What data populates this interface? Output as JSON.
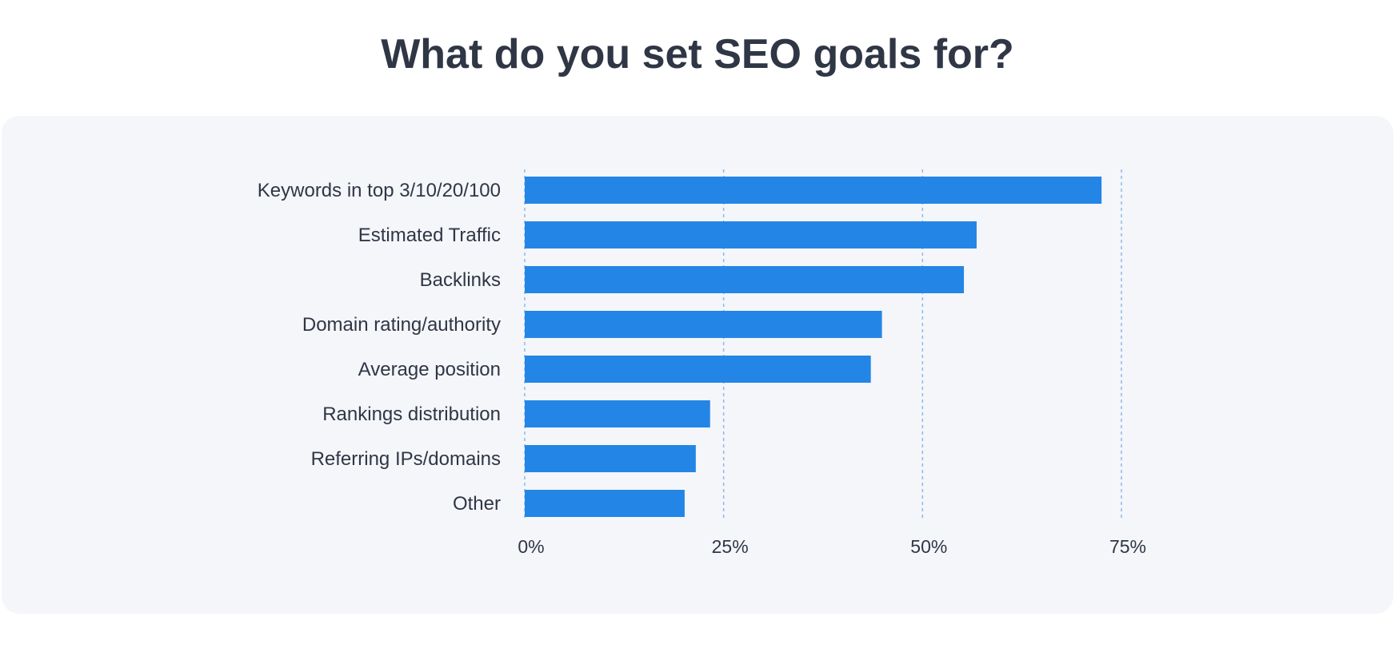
{
  "chart_data": {
    "type": "bar",
    "orientation": "horizontal",
    "title": "What do you set SEO goals for?",
    "xlabel": "",
    "ylabel": "",
    "categories": [
      "Keywords in top 3/10/20/100",
      "Estimated Traffic",
      "Backlinks",
      "Domain rating/authority",
      "Average position",
      "Rankings distribution",
      "Referring IPs/domains",
      "Other"
    ],
    "values": [
      72.5,
      56.8,
      55.2,
      44.9,
      43.5,
      23.3,
      21.5,
      20.1
    ],
    "unit": "%",
    "xlim": [
      0,
      75
    ],
    "xticks": [
      0,
      25,
      50,
      75
    ],
    "xtick_labels": [
      "0%",
      "25%",
      "50%",
      "75%"
    ],
    "grid": "vertical dashed",
    "legend": "none",
    "colors": {
      "bar": "#2386e6",
      "grid": "#8cb9ea",
      "panel": "#f4f6fa",
      "text": "#2f3645"
    }
  }
}
